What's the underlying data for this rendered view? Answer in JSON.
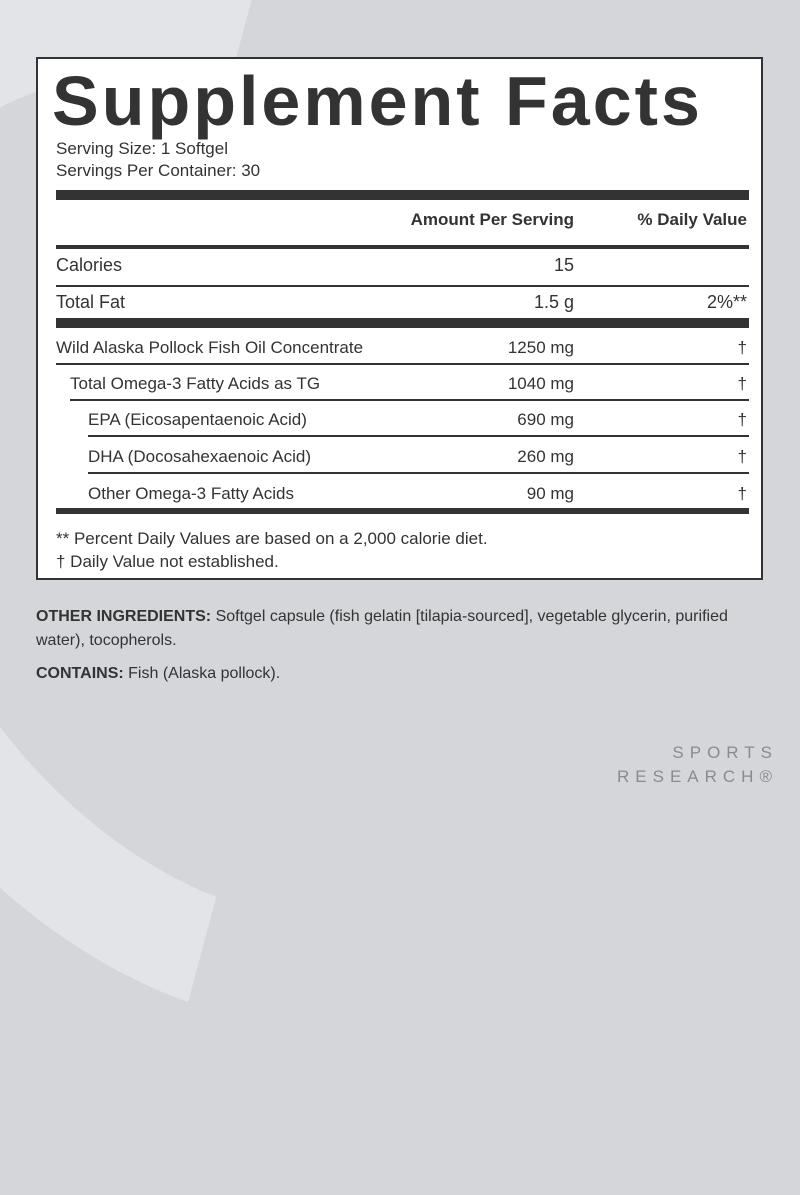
{
  "title": "Supplement Facts",
  "serving_size": "Serving Size: 1 Softgel",
  "servings_per_container": "Servings Per Container: 30",
  "headers": {
    "amount": "Amount Per Serving",
    "dv": "% Daily Value"
  },
  "rows": [
    {
      "name": "Calories",
      "amount": "15",
      "dv": ""
    },
    {
      "name": "Total Fat",
      "amount": "1.5 g",
      "dv": "2%**"
    },
    {
      "name": "Wild Alaska Pollock Fish Oil Concentrate",
      "amount": "1250 mg",
      "dv": "†"
    },
    {
      "name": "Total Omega-3 Fatty Acids as TG",
      "amount": "1040 mg",
      "dv": "†"
    },
    {
      "name": "EPA (Eicosapentaenoic Acid)",
      "amount": "690 mg",
      "dv": "†"
    },
    {
      "name": "DHA (Docosahexaenoic Acid)",
      "amount": "260 mg",
      "dv": "†"
    },
    {
      "name": "Other Omega-3 Fatty Acids",
      "amount": "90 mg",
      "dv": "†"
    }
  ],
  "footnotes": [
    "** Percent Daily Values are based on a 2,000 calorie diet.",
    "† Daily Value not established."
  ],
  "other_ingredients": {
    "label": "OTHER INGREDIENTS:",
    "text": " Softgel capsule (fish gelatin [tilapia-sourced], vegetable glycerin, purified water), tocopherols."
  },
  "contains": {
    "label": "CONTAINS:",
    "text": " Fish (Alaska pollock)."
  },
  "brand": {
    "line1": "SPORTS",
    "line2": "RESEARCH®"
  }
}
